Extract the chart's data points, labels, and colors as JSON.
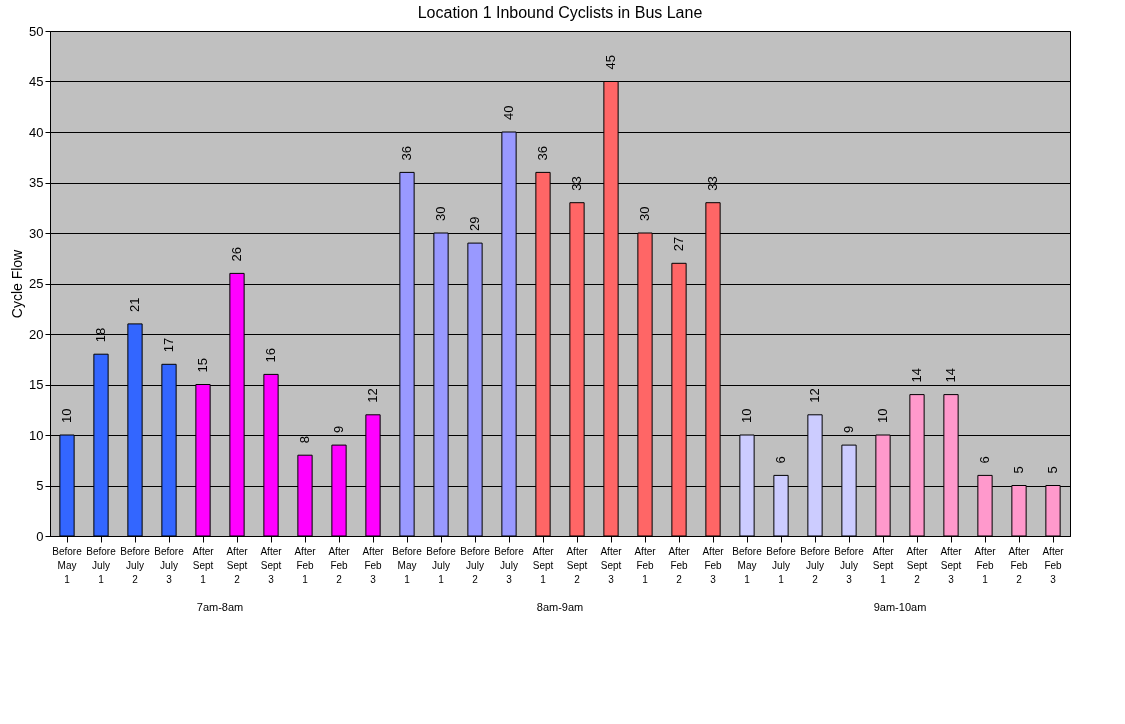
{
  "chart_data": {
    "type": "bar",
    "title": "Location 1 Inbound Cyclists in Bus Lane",
    "ylabel": "Cycle Flow",
    "categories": [
      "Before May 1",
      "Before July 1",
      "Before July 2",
      "Before July 3",
      "After Sept 1",
      "After Sept 2",
      "After Sept 3",
      "After Feb 1",
      "After Feb 2",
      "After Feb 3",
      "Before May 1",
      "Before July 1",
      "Before July 2",
      "Before July 3",
      "After Sept 1",
      "After Sept 2",
      "After Sept 3",
      "After Feb 1",
      "After Feb 2",
      "After Feb 3",
      "Before May 1",
      "Before July 1",
      "Before July 2",
      "Before July 3",
      "After Sept 1",
      "After Sept 2",
      "After Sept 3",
      "After Feb 1",
      "After Feb 2",
      "After Feb 3"
    ],
    "values": [
      10,
      18,
      21,
      17,
      15,
      26,
      16,
      8,
      9,
      12,
      36,
      30,
      29,
      40,
      36,
      33,
      45,
      30,
      27,
      33,
      10,
      6,
      12,
      9,
      10,
      14,
      14,
      6,
      5,
      5
    ],
    "colors": [
      "#3366ff",
      "#3366ff",
      "#3366ff",
      "#3366ff",
      "#ff00ff",
      "#ff00ff",
      "#ff00ff",
      "#ff00ff",
      "#ff00ff",
      "#ff00ff",
      "#9999ff",
      "#9999ff",
      "#9999ff",
      "#9999ff",
      "#ff6666",
      "#ff6666",
      "#ff6666",
      "#ff6666",
      "#ff6666",
      "#ff6666",
      "#ccccff",
      "#ccccff",
      "#ccccff",
      "#ccccff",
      "#ff99cc",
      "#ff99cc",
      "#ff99cc",
      "#ff99cc",
      "#ff99cc",
      "#ff99cc"
    ],
    "ylim": [
      0,
      50
    ],
    "yticks": [
      0,
      5,
      10,
      15,
      20,
      25,
      30,
      35,
      40,
      45,
      50
    ],
    "grid": "y",
    "data_labels": true,
    "annotations": [
      "7am-8am",
      "8am-9am",
      "9am-10am"
    ]
  }
}
